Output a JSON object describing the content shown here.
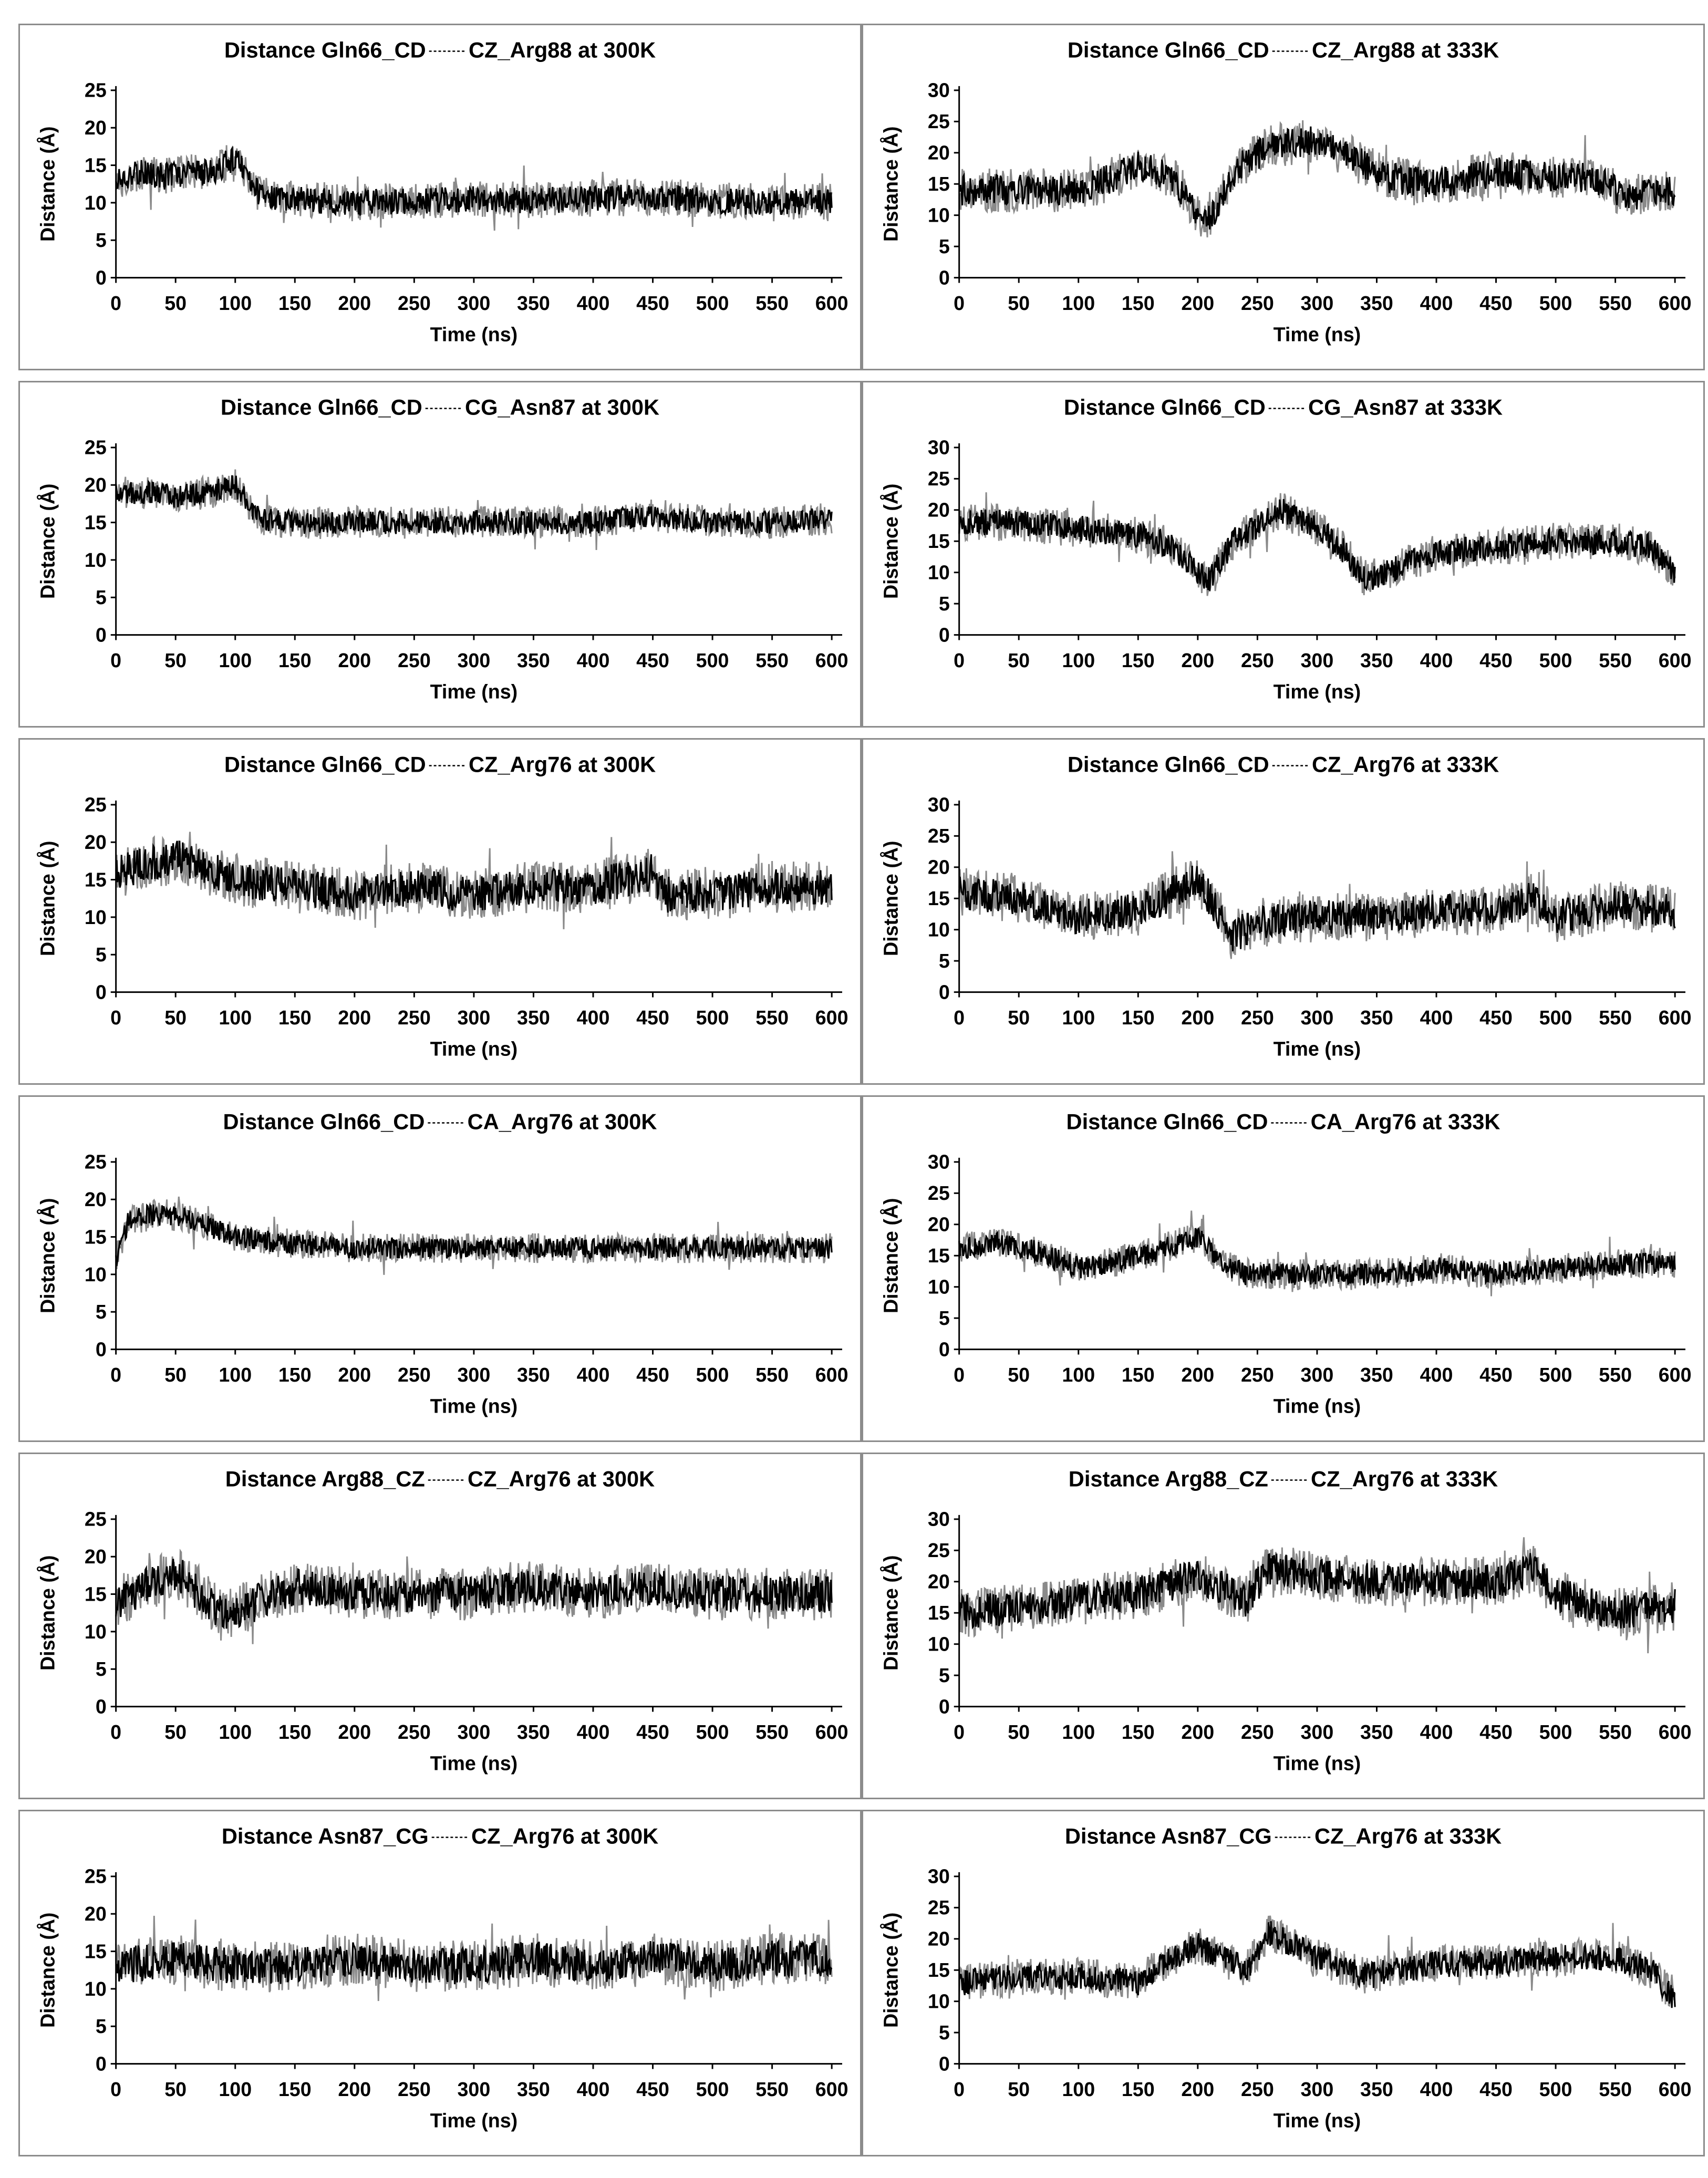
{
  "chart_data": [
    {
      "type": "line",
      "title_left": "Distance Gln66_CD",
      "title_right": "CZ_Arg88 at 300K",
      "xlabel": "Time (ns)",
      "ylabel": "Distance (Å)",
      "xlim": [
        0,
        600
      ],
      "ylim": [
        0,
        25
      ],
      "xticks": [
        "0",
        "50",
        "100",
        "150",
        "200",
        "250",
        "300",
        "350",
        "400",
        "450",
        "500",
        "550",
        "600"
      ],
      "yticks": [
        "0",
        "5",
        "10",
        "15",
        "20",
        "25"
      ],
      "series": [
        {
          "x": [
            0,
            20,
            40,
            60,
            80,
            90,
            100,
            110,
            120,
            150,
            200,
            250,
            300,
            350,
            400,
            450,
            500,
            550,
            600
          ],
          "y": [
            13,
            14,
            13.5,
            14,
            14,
            15,
            16,
            14,
            11,
            10.5,
            10,
            10.2,
            10.5,
            10.3,
            10.5,
            10.8,
            10.3,
            10,
            10.3
          ],
          "noise": 2.5
        }
      ]
    },
    {
      "type": "line",
      "title_left": "Distance Gln66_CD",
      "title_right": "CZ_Arg88 at 333K",
      "xlabel": "Time (ns)",
      "ylabel": "Distance (Å)",
      "xlim": [
        0,
        600
      ],
      "ylim": [
        0,
        30
      ],
      "xticks": [
        "0",
        "50",
        "100",
        "150",
        "200",
        "250",
        "300",
        "350",
        "400",
        "450",
        "500",
        "550",
        "600"
      ],
      "yticks": [
        "0",
        "5",
        "10",
        "15",
        "20",
        "25",
        "30"
      ],
      "series": [
        {
          "x": [
            0,
            50,
            100,
            130,
            150,
            180,
            200,
            210,
            230,
            260,
            300,
            330,
            360,
            400,
            450,
            500,
            530,
            560,
            600
          ],
          "y": [
            14,
            14,
            14,
            16,
            18,
            16,
            10,
            9,
            17,
            21,
            22,
            19,
            16,
            15,
            17,
            16,
            16,
            13,
            14
          ],
          "noise": 3.5
        }
      ]
    },
    {
      "type": "line",
      "title_left": "Distance Gln66_CD",
      "title_right": "CG_Asn87 at 300K",
      "xlabel": "Time (ns)",
      "ylabel": "Distance (Å)",
      "xlim": [
        0,
        600
      ],
      "ylim": [
        0,
        25
      ],
      "xticks": [
        "0",
        "50",
        "100",
        "150",
        "200",
        "250",
        "300",
        "350",
        "400",
        "450",
        "500",
        "550",
        "600"
      ],
      "yticks": [
        "0",
        "5",
        "10",
        "15",
        "20",
        "25"
      ],
      "series": [
        {
          "x": [
            0,
            20,
            50,
            80,
            100,
            110,
            120,
            150,
            200,
            250,
            300,
            350,
            400,
            450,
            500,
            550,
            600
          ],
          "y": [
            19,
            19,
            18.5,
            19,
            20,
            18,
            15.5,
            15,
            15,
            15,
            15,
            15,
            15,
            16,
            15,
            15,
            15.5
          ],
          "noise": 2.2
        }
      ]
    },
    {
      "type": "line",
      "title_left": "Distance Gln66_CD",
      "title_right": "CG_Asn87 at 333K",
      "xlabel": "Time (ns)",
      "ylabel": "Distance (Å)",
      "xlim": [
        0,
        600
      ],
      "ylim": [
        0,
        30
      ],
      "xticks": [
        "0",
        "50",
        "100",
        "150",
        "200",
        "250",
        "300",
        "350",
        "400",
        "450",
        "500",
        "550",
        "600"
      ],
      "yticks": [
        "0",
        "5",
        "10",
        "15",
        "20",
        "25",
        "30"
      ],
      "series": [
        {
          "x": [
            0,
            50,
            100,
            150,
            180,
            200,
            210,
            230,
            270,
            300,
            320,
            340,
            360,
            380,
            400,
            450,
            500,
            550,
            580,
            600
          ],
          "y": [
            18,
            18,
            17,
            16,
            14,
            10,
            9,
            15,
            20,
            17,
            14,
            9,
            10,
            12,
            13,
            14,
            15,
            15,
            14,
            10
          ],
          "noise": 3
        }
      ]
    },
    {
      "type": "line",
      "title_left": "Distance Gln66_CD",
      "title_right": "CZ_Arg76 at 300K",
      "xlabel": "Time (ns)",
      "ylabel": "Distance (Å)",
      "xlim": [
        0,
        600
      ],
      "ylim": [
        0,
        25
      ],
      "xticks": [
        "0",
        "50",
        "100",
        "150",
        "200",
        "250",
        "300",
        "350",
        "400",
        "450",
        "500",
        "550",
        "600"
      ],
      "yticks": [
        "0",
        "5",
        "10",
        "15",
        "20",
        "25"
      ],
      "series": [
        {
          "x": [
            0,
            50,
            100,
            150,
            200,
            250,
            300,
            350,
            400,
            450,
            460,
            500,
            550,
            600
          ],
          "y": [
            16,
            18,
            15,
            14,
            13,
            14,
            13,
            14,
            14,
            16,
            13,
            13,
            14,
            14
          ],
          "noise": 3.5
        }
      ]
    },
    {
      "type": "line",
      "title_left": "Distance Gln66_CD",
      "title_right": "CZ_Arg76 at 333K",
      "xlabel": "Time (ns)",
      "ylabel": "Distance (Å)",
      "xlim": [
        0,
        600
      ],
      "ylim": [
        0,
        30
      ],
      "xticks": [
        "0",
        "50",
        "100",
        "150",
        "200",
        "250",
        "300",
        "350",
        "400",
        "450",
        "500",
        "550",
        "600"
      ],
      "yticks": [
        "0",
        "5",
        "10",
        "15",
        "20",
        "25",
        "30"
      ],
      "series": [
        {
          "x": [
            0,
            50,
            100,
            150,
            200,
            210,
            230,
            250,
            300,
            350,
            400,
            450,
            480,
            500,
            550,
            600
          ],
          "y": [
            16,
            15,
            12,
            13,
            18,
            15,
            9,
            11,
            12,
            12,
            13,
            13,
            15,
            12,
            14,
            13
          ],
          "noise": 4
        }
      ]
    },
    {
      "type": "line",
      "title_left": "Distance Gln66_CD",
      "title_right": "CA_Arg76 at 300K",
      "xlabel": "Time (ns)",
      "ylabel": "Distance (Å)",
      "xlim": [
        0,
        600
      ],
      "ylim": [
        0,
        25
      ],
      "xticks": [
        "0",
        "50",
        "100",
        "150",
        "200",
        "250",
        "300",
        "350",
        "400",
        "450",
        "500",
        "550",
        "600"
      ],
      "yticks": [
        "0",
        "5",
        "10",
        "15",
        "20",
        "25"
      ],
      "series": [
        {
          "x": [
            0,
            10,
            30,
            60,
            100,
            150,
            200,
            250,
            300,
            350,
            400,
            450,
            500,
            550,
            600
          ],
          "y": [
            12,
            17,
            18,
            17.5,
            15,
            14,
            13.5,
            13.5,
            13.5,
            13.5,
            13.5,
            13.5,
            13.5,
            13.5,
            13.5
          ],
          "noise": 2
        }
      ]
    },
    {
      "type": "line",
      "title_left": "Distance Gln66_CD",
      "title_right": "CA_Arg76 at 333K",
      "xlabel": "Time (ns)",
      "ylabel": "Distance (Å)",
      "xlim": [
        0,
        600
      ],
      "ylim": [
        0,
        30
      ],
      "xticks": [
        "0",
        "50",
        "100",
        "150",
        "200",
        "250",
        "300",
        "350",
        "400",
        "450",
        "500",
        "550",
        "600"
      ],
      "yticks": [
        "0",
        "5",
        "10",
        "15",
        "20",
        "25",
        "30"
      ],
      "series": [
        {
          "x": [
            0,
            30,
            60,
            100,
            130,
            170,
            200,
            220,
            240,
            300,
            350,
            400,
            450,
            500,
            550,
            600
          ],
          "y": [
            16,
            17,
            16,
            13,
            14,
            16,
            18,
            14,
            12,
            12,
            12,
            13,
            12,
            13,
            13.5,
            14
          ],
          "noise": 2.5
        }
      ]
    },
    {
      "type": "line",
      "title_left": "Distance Arg88_CZ",
      "title_right": "CZ_Arg76 at 300K",
      "xlabel": "Time (ns)",
      "ylabel": "Distance (Å)",
      "xlim": [
        0,
        600
      ],
      "ylim": [
        0,
        25
      ],
      "xticks": [
        "0",
        "50",
        "100",
        "150",
        "200",
        "250",
        "300",
        "350",
        "400",
        "450",
        "500",
        "550",
        "600"
      ],
      "yticks": [
        "0",
        "5",
        "10",
        "15",
        "20",
        "25"
      ],
      "series": [
        {
          "x": [
            0,
            50,
            90,
            150,
            200,
            250,
            300,
            350,
            400,
            450,
            500,
            550,
            600
          ],
          "y": [
            14,
            18,
            12,
            16,
            15,
            15,
            15,
            16,
            15,
            16,
            15,
            15,
            15
          ],
          "noise": 3.5
        }
      ]
    },
    {
      "type": "line",
      "title_left": "Distance Arg88_CZ",
      "title_right": "CZ_Arg76 at 333K",
      "xlabel": "Time (ns)",
      "ylabel": "Distance (Å)",
      "xlim": [
        0,
        600
      ],
      "ylim": [
        0,
        30
      ],
      "xticks": [
        "0",
        "50",
        "100",
        "150",
        "200",
        "250",
        "300",
        "350",
        "400",
        "450",
        "500",
        "550",
        "600"
      ],
      "yticks": [
        "0",
        "5",
        "10",
        "15",
        "20",
        "25",
        "30"
      ],
      "series": [
        {
          "x": [
            0,
            50,
            100,
            150,
            200,
            240,
            260,
            300,
            350,
            400,
            450,
            480,
            500,
            550,
            600
          ],
          "y": [
            15,
            16,
            17,
            18,
            21,
            17,
            22,
            21,
            20,
            20,
            20,
            22,
            18,
            15,
            16
          ],
          "noise": 4
        }
      ]
    },
    {
      "type": "line",
      "title_left": "Distance Asn87_CG",
      "title_right": "CZ_Arg76 at 300K",
      "xlabel": "Time (ns)",
      "ylabel": "Distance (Å)",
      "xlim": [
        0,
        600
      ],
      "ylim": [
        0,
        25
      ],
      "xticks": [
        "0",
        "50",
        "100",
        "150",
        "200",
        "250",
        "300",
        "350",
        "400",
        "450",
        "500",
        "550",
        "600"
      ],
      "yticks": [
        "0",
        "5",
        "10",
        "15",
        "20",
        "25"
      ],
      "series": [
        {
          "x": [
            0,
            50,
            100,
            150,
            200,
            250,
            300,
            350,
            400,
            450,
            500,
            550,
            600
          ],
          "y": [
            13,
            14,
            13,
            13,
            14,
            13,
            13,
            14,
            13,
            14,
            13,
            14,
            14
          ],
          "noise": 3.5
        }
      ]
    },
    {
      "type": "line",
      "title_left": "Distance Asn87_CG",
      "title_right": "CZ_Arg76 at 333K",
      "xlabel": "Time (ns)",
      "ylabel": "Distance (Å)",
      "xlim": [
        0,
        600
      ],
      "ylim": [
        0,
        30
      ],
      "xticks": [
        "0",
        "50",
        "100",
        "150",
        "200",
        "250",
        "300",
        "350",
        "400",
        "450",
        "500",
        "550",
        "600"
      ],
      "yticks": [
        "0",
        "5",
        "10",
        "15",
        "20",
        "25",
        "30"
      ],
      "series": [
        {
          "x": [
            0,
            50,
            100,
            150,
            170,
            200,
            240,
            260,
            300,
            340,
            400,
            450,
            500,
            550,
            580,
            600
          ],
          "y": [
            13,
            14,
            14,
            13,
            16,
            19,
            15,
            21,
            17,
            14,
            16,
            16,
            17,
            17,
            15,
            10
          ],
          "noise": 3
        }
      ]
    }
  ]
}
